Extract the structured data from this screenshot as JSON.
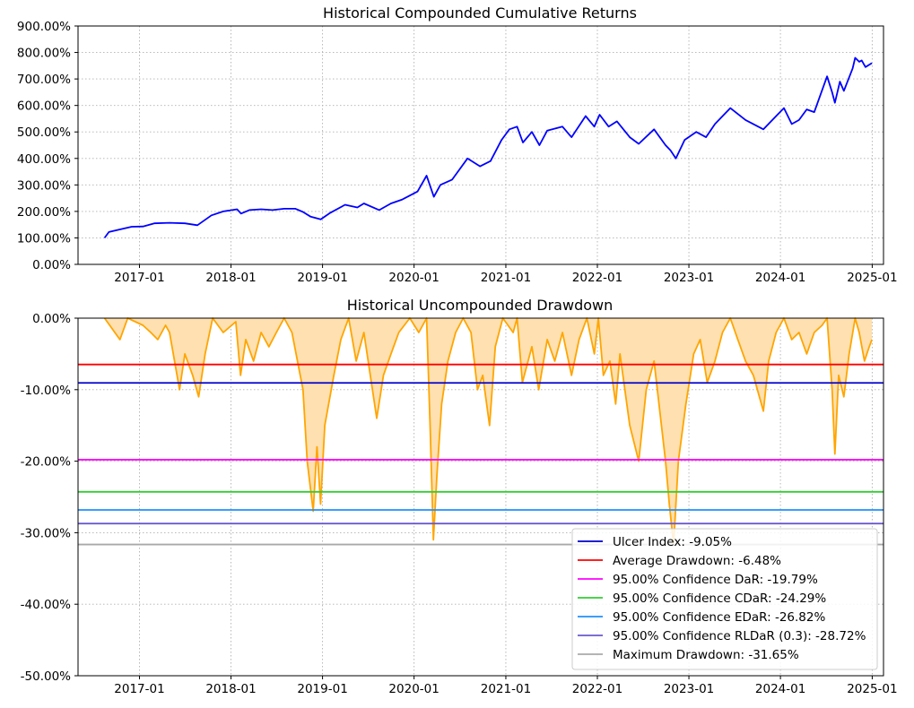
{
  "chart_data": [
    {
      "type": "line",
      "title": "Historical Compounded Cumulative Returns",
      "xlabel": "",
      "ylabel": "",
      "x_tick_labels": [
        "2017-01",
        "2018-01",
        "2019-01",
        "2020-01",
        "2021-01",
        "2022-01",
        "2023-01",
        "2024-01",
        "2025-01"
      ],
      "y_tick_labels": [
        "0.00%",
        "100.00%",
        "200.00%",
        "300.00%",
        "400.00%",
        "500.00%",
        "600.00%",
        "700.00%",
        "800.00%",
        "900.00%"
      ],
      "ylim": [
        0,
        900
      ],
      "xlim": [
        "2016-05-01",
        "2025-02-15"
      ],
      "grid": true,
      "series": [
        {
          "color": "#0000ff",
          "points": [
            [
              "2016-08-15",
              100
            ],
            [
              "2016-09-01",
              122
            ],
            [
              "2016-10-15",
              132
            ],
            [
              "2016-12-01",
              142
            ],
            [
              "2017-01-15",
              143
            ],
            [
              "2017-03-01",
              155
            ],
            [
              "2017-05-01",
              157
            ],
            [
              "2017-07-01",
              155
            ],
            [
              "2017-08-20",
              148
            ],
            [
              "2017-10-15",
              185
            ],
            [
              "2017-12-01",
              200
            ],
            [
              "2018-01-25",
              208
            ],
            [
              "2018-02-10",
              192
            ],
            [
              "2018-03-15",
              205
            ],
            [
              "2018-05-01",
              208
            ],
            [
              "2018-06-15",
              205
            ],
            [
              "2018-08-01",
              210
            ],
            [
              "2018-09-15",
              210
            ],
            [
              "2018-10-15",
              198
            ],
            [
              "2018-11-15",
              180
            ],
            [
              "2018-12-25",
              170
            ],
            [
              "2019-02-01",
              195
            ],
            [
              "2019-04-01",
              225
            ],
            [
              "2019-05-20",
              215
            ],
            [
              "2019-06-15",
              230
            ],
            [
              "2019-08-15",
              205
            ],
            [
              "2019-10-01",
              230
            ],
            [
              "2019-11-15",
              245
            ],
            [
              "2020-01-15",
              275
            ],
            [
              "2020-02-20",
              335
            ],
            [
              "2020-03-20",
              255
            ],
            [
              "2020-04-15",
              300
            ],
            [
              "2020-06-01",
              320
            ],
            [
              "2020-08-01",
              400
            ],
            [
              "2020-09-20",
              370
            ],
            [
              "2020-11-01",
              390
            ],
            [
              "2020-12-15",
              470
            ],
            [
              "2021-01-15",
              510
            ],
            [
              "2021-02-15",
              520
            ],
            [
              "2021-03-10",
              460
            ],
            [
              "2021-04-15",
              500
            ],
            [
              "2021-05-15",
              450
            ],
            [
              "2021-06-15",
              505
            ],
            [
              "2021-08-15",
              520
            ],
            [
              "2021-09-20",
              480
            ],
            [
              "2021-11-15",
              560
            ],
            [
              "2021-12-20",
              520
            ],
            [
              "2022-01-10",
              565
            ],
            [
              "2022-02-15",
              520
            ],
            [
              "2022-03-20",
              540
            ],
            [
              "2022-05-10",
              480
            ],
            [
              "2022-06-15",
              455
            ],
            [
              "2022-08-15",
              510
            ],
            [
              "2022-09-30",
              450
            ],
            [
              "2022-10-20",
              430
            ],
            [
              "2022-11-10",
              400
            ],
            [
              "2022-12-15",
              470
            ],
            [
              "2023-01-30",
              500
            ],
            [
              "2023-03-10",
              480
            ],
            [
              "2023-04-15",
              530
            ],
            [
              "2023-06-15",
              590
            ],
            [
              "2023-08-15",
              545
            ],
            [
              "2023-10-25",
              510
            ],
            [
              "2023-12-15",
              560
            ],
            [
              "2024-01-15",
              590
            ],
            [
              "2024-02-15",
              530
            ],
            [
              "2024-03-15",
              545
            ],
            [
              "2024-04-15",
              585
            ],
            [
              "2024-05-15",
              575
            ],
            [
              "2024-07-05",
              710
            ],
            [
              "2024-07-25",
              650
            ],
            [
              "2024-08-05",
              610
            ],
            [
              "2024-08-25",
              690
            ],
            [
              "2024-09-10",
              655
            ],
            [
              "2024-10-15",
              740
            ],
            [
              "2024-10-25",
              780
            ],
            [
              "2024-11-10",
              765
            ],
            [
              "2024-11-20",
              770
            ],
            [
              "2024-12-05",
              745
            ],
            [
              "2024-12-31",
              760
            ]
          ]
        }
      ]
    },
    {
      "type": "area",
      "title": "Historical Uncompounded Drawdown",
      "xlabel": "",
      "ylabel": "",
      "x_tick_labels": [
        "2017-01",
        "2018-01",
        "2019-01",
        "2020-01",
        "2021-01",
        "2022-01",
        "2023-01",
        "2024-01",
        "2025-01"
      ],
      "y_tick_labels": [
        "0.00%",
        "-10.00%",
        "-20.00%",
        "-30.00%",
        "-40.00%",
        "-50.00%"
      ],
      "ylim": [
        -50,
        0
      ],
      "xlim": [
        "2016-05-01",
        "2025-02-15"
      ],
      "grid": true,
      "legend_position": "bottom-right",
      "series": [
        {
          "color": "#ffa500",
          "fill": "#ffe0b0",
          "points": [
            [
              "2016-08-15",
              0
            ],
            [
              "2016-10-15",
              -3
            ],
            [
              "2016-11-15",
              0
            ],
            [
              "2017-01-15",
              -1
            ],
            [
              "2017-02-15",
              -2
            ],
            [
              "2017-03-15",
              -3
            ],
            [
              "2017-04-15",
              -1
            ],
            [
              "2017-05-01",
              -2
            ],
            [
              "2017-06-10",
              -10
            ],
            [
              "2017-07-01",
              -5
            ],
            [
              "2017-08-01",
              -8
            ],
            [
              "2017-08-25",
              -11
            ],
            [
              "2017-09-20",
              -5
            ],
            [
              "2017-10-20",
              0
            ],
            [
              "2017-12-01",
              -2
            ],
            [
              "2018-01-20",
              -0.5
            ],
            [
              "2018-02-08",
              -8
            ],
            [
              "2018-03-01",
              -3
            ],
            [
              "2018-04-01",
              -6
            ],
            [
              "2018-05-01",
              -2
            ],
            [
              "2018-06-01",
              -4
            ],
            [
              "2018-07-01",
              -2
            ],
            [
              "2018-08-01",
              0
            ],
            [
              "2018-09-01",
              -2
            ],
            [
              "2018-10-15",
              -10
            ],
            [
              "2018-11-01",
              -20
            ],
            [
              "2018-11-25",
              -27
            ],
            [
              "2018-12-10",
              -18
            ],
            [
              "2018-12-24",
              -26
            ],
            [
              "2019-01-10",
              -15
            ],
            [
              "2019-02-15",
              -8
            ],
            [
              "2019-03-15",
              -3
            ],
            [
              "2019-04-15",
              0
            ],
            [
              "2019-05-15",
              -6
            ],
            [
              "2019-06-15",
              -2
            ],
            [
              "2019-08-05",
              -14
            ],
            [
              "2019-09-01",
              -8
            ],
            [
              "2019-10-01",
              -5
            ],
            [
              "2019-11-01",
              -2
            ],
            [
              "2019-12-15",
              0
            ],
            [
              "2020-01-20",
              -2
            ],
            [
              "2020-02-20",
              0
            ],
            [
              "2020-03-05",
              -15
            ],
            [
              "2020-03-18",
              -31
            ],
            [
              "2020-04-01",
              -22
            ],
            [
              "2020-04-20",
              -12
            ],
            [
              "2020-05-15",
              -6
            ],
            [
              "2020-06-15",
              -2
            ],
            [
              "2020-07-15",
              0
            ],
            [
              "2020-08-15",
              -2
            ],
            [
              "2020-09-10",
              -10
            ],
            [
              "2020-10-01",
              -8
            ],
            [
              "2020-10-28",
              -15
            ],
            [
              "2020-11-20",
              -4
            ],
            [
              "2020-12-20",
              0
            ],
            [
              "2021-01-30",
              -2
            ],
            [
              "2021-02-15",
              0
            ],
            [
              "2021-03-08",
              -9
            ],
            [
              "2021-04-15",
              -4
            ],
            [
              "2021-05-12",
              -10
            ],
            [
              "2021-06-15",
              -3
            ],
            [
              "2021-07-15",
              -6
            ],
            [
              "2021-08-15",
              -2
            ],
            [
              "2021-09-20",
              -8
            ],
            [
              "2021-10-20",
              -3
            ],
            [
              "2021-11-20",
              0
            ],
            [
              "2021-12-20",
              -5
            ],
            [
              "2022-01-05",
              0
            ],
            [
              "2022-01-25",
              -8
            ],
            [
              "2022-02-20",
              -6
            ],
            [
              "2022-03-15",
              -12
            ],
            [
              "2022-04-01",
              -5
            ],
            [
              "2022-05-10",
              -15
            ],
            [
              "2022-06-15",
              -20
            ],
            [
              "2022-07-15",
              -10
            ],
            [
              "2022-08-15",
              -6
            ],
            [
              "2022-09-30",
              -20
            ],
            [
              "2022-10-15",
              -26
            ],
            [
              "2022-11-01",
              -31.65
            ],
            [
              "2022-11-20",
              -20
            ],
            [
              "2022-12-20",
              -12
            ],
            [
              "2023-01-20",
              -5
            ],
            [
              "2023-02-15",
              -3
            ],
            [
              "2023-03-15",
              -9
            ],
            [
              "2023-04-15",
              -6
            ],
            [
              "2023-05-15",
              -2
            ],
            [
              "2023-06-15",
              0
            ],
            [
              "2023-07-15",
              -3
            ],
            [
              "2023-08-15",
              -6
            ],
            [
              "2023-09-15",
              -8
            ],
            [
              "2023-10-25",
              -13
            ],
            [
              "2023-11-15",
              -6
            ],
            [
              "2023-12-15",
              -2
            ],
            [
              "2024-01-15",
              0
            ],
            [
              "2024-02-15",
              -3
            ],
            [
              "2024-03-15",
              -2
            ],
            [
              "2024-04-15",
              -5
            ],
            [
              "2024-05-15",
              -2
            ],
            [
              "2024-06-15",
              -1
            ],
            [
              "2024-07-05",
              0
            ],
            [
              "2024-07-25",
              -10
            ],
            [
              "2024-08-05",
              -19
            ],
            [
              "2024-08-20",
              -8
            ],
            [
              "2024-09-10",
              -11
            ],
            [
              "2024-10-01",
              -5
            ],
            [
              "2024-10-25",
              0
            ],
            [
              "2024-11-10",
              -2
            ],
            [
              "2024-12-01",
              -6
            ],
            [
              "2024-12-20",
              -4
            ],
            [
              "2024-12-31",
              -3
            ]
          ]
        }
      ],
      "reference_lines": [
        {
          "label": "Ulcer Index: -9.05%",
          "value": -9.05,
          "color": "#0000cd"
        },
        {
          "label": "Average Drawdown: -6.48%",
          "value": -6.48,
          "color": "#ff0000"
        },
        {
          "label": "95.00% Confidence DaR: -19.79%",
          "value": -19.79,
          "color": "#ff00ff"
        },
        {
          "label": "95.00% Confidence CDaR: -24.29%",
          "value": -24.29,
          "color": "#32cd32"
        },
        {
          "label": "95.00% Confidence EDaR: -26.82%",
          "value": -26.82,
          "color": "#1e90ff"
        },
        {
          "label": "95.00% Confidence RLDaR (0.3): -28.72%",
          "value": -28.72,
          "color": "#6a5acd"
        },
        {
          "label": "Maximum Drawdown: -31.65%",
          "value": -31.65,
          "color": "#a9a9a9"
        }
      ]
    }
  ]
}
